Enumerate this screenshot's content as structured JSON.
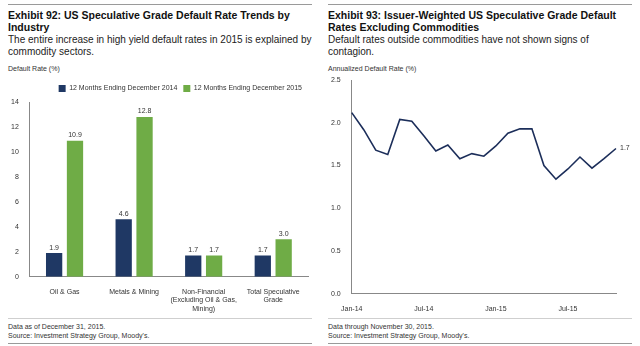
{
  "chart_data": [
    {
      "type": "bar",
      "title": "Exhibit 92: US Speculative Grade Default Rate Trends by Industry",
      "subtitle": "The entire increase in high yield default rates in 2015 is explained by commodity sectors.",
      "y_label": "Default Rate (%)",
      "categories": [
        [
          "Oil & Gas"
        ],
        [
          "Metals & Mining"
        ],
        [
          "Non-Financial",
          "(Excluding Oil & Gas,",
          "Mining)"
        ],
        [
          "Total Speculative",
          "Grade"
        ]
      ],
      "series": [
        {
          "name": "12 Months Ending December 2014",
          "color": "#1f3864",
          "values": [
            1.9,
            4.6,
            1.7,
            1.7
          ]
        },
        {
          "name": "12 Months Ending December 2015",
          "color": "#6fac46",
          "values": [
            10.9,
            12.8,
            1.7,
            3.0
          ],
          "value_labels": [
            "10.9",
            "12.8",
            "1.7",
            "3.0"
          ]
        }
      ],
      "ylim": [
        0,
        14
      ],
      "yticks": [
        0,
        2,
        4,
        6,
        8,
        10,
        12,
        14
      ],
      "grid": false,
      "legend": "upper right",
      "data_labels": true,
      "notes": [
        "Data as of December 31, 2015.",
        "Source: Investment Strategy Group, Moody's."
      ]
    },
    {
      "type": "line",
      "title": "Exhibit 93: Issuer-Weighted US Speculative Grade Default Rates Excluding Commodities",
      "subtitle": "Default rates outside commodities have not shown signs of contagion.",
      "y_label": "Annualized Default Rate (%)",
      "categories": [
        "Jan-14",
        null,
        null,
        null,
        null,
        null,
        "Jul-14",
        null,
        null,
        null,
        null,
        null,
        "Jan-15",
        null,
        null,
        null,
        null,
        null,
        "Jul-15",
        null,
        null,
        null,
        null
      ],
      "values": [
        2.12,
        1.92,
        1.68,
        1.63,
        2.04,
        2.02,
        1.85,
        1.67,
        1.74,
        1.58,
        1.64,
        1.61,
        1.73,
        1.88,
        1.93,
        1.93,
        1.5,
        1.34,
        1.46,
        1.6,
        1.47,
        1.58,
        1.7
      ],
      "value_labels": [
        null,
        null,
        null,
        null,
        null,
        null,
        null,
        null,
        null,
        null,
        null,
        null,
        null,
        null,
        null,
        null,
        null,
        null,
        null,
        null,
        null,
        null,
        "1.7"
      ],
      "color": "#1c2e5a",
      "ylim": [
        0,
        2.5
      ],
      "yticks": [
        {
          "value": 0,
          "label": "0.0"
        },
        0.5,
        {
          "value": 1,
          "label": "1.0"
        },
        1.5,
        {
          "value": 2,
          "label": "2.0"
        },
        2.5
      ],
      "grid": false,
      "notes": [
        "Data through November 30, 2015.",
        "Source: Investment Strategy Group, Moody's."
      ]
    }
  ]
}
